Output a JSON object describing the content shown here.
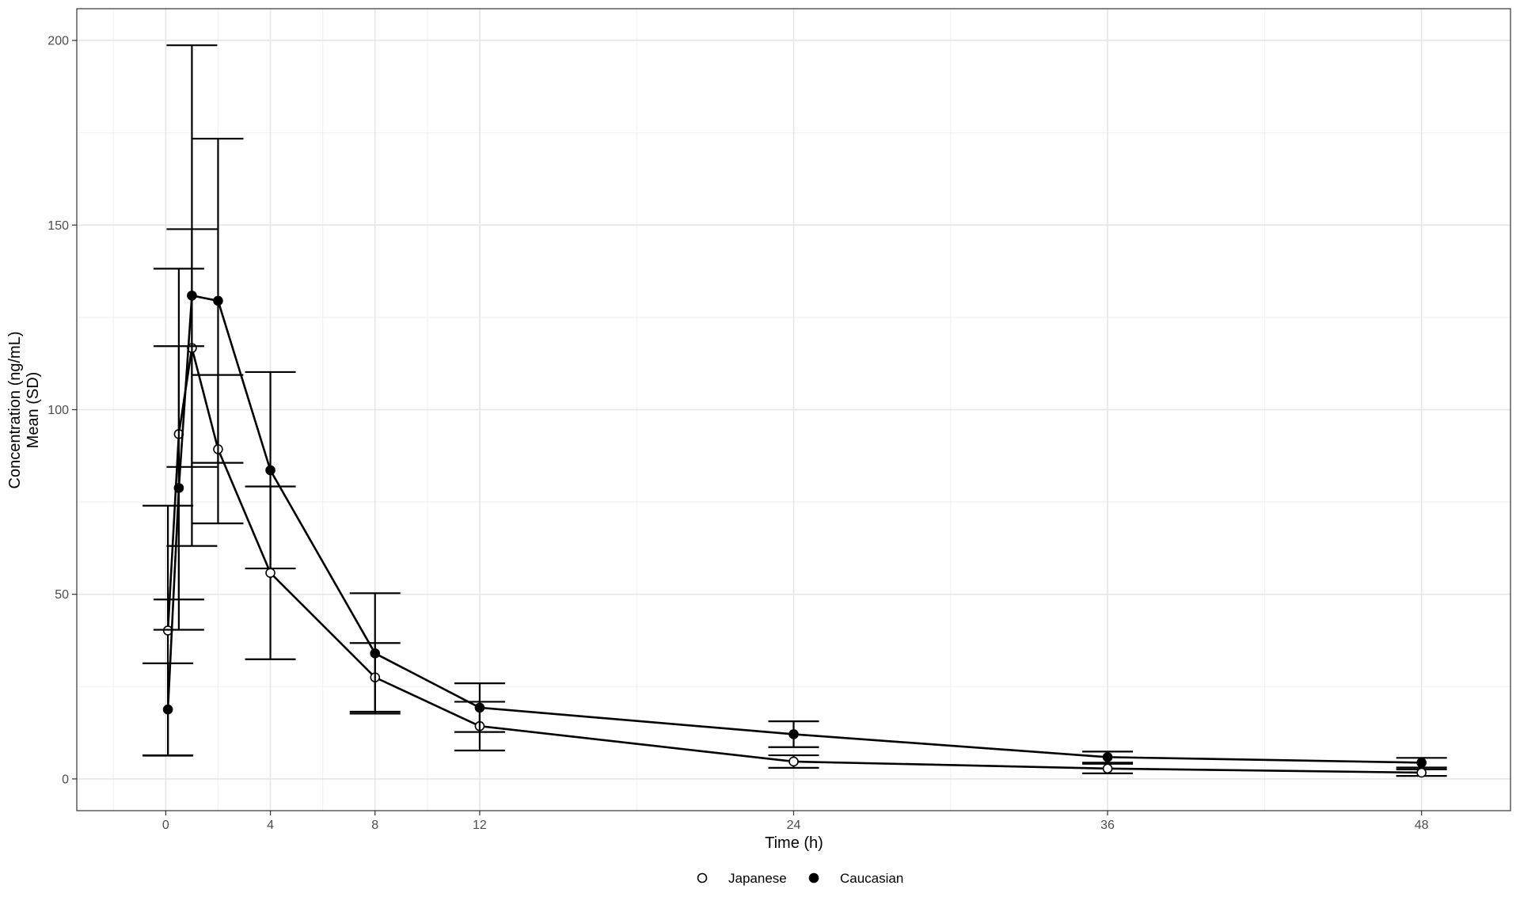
{
  "chart_data": {
    "type": "line",
    "xlabel": "Time (h)",
    "ylabel_line1": "Concentration (ng/mL)",
    "ylabel_line2": "Mean (SD)",
    "x_ticks": [
      0,
      4,
      8,
      12,
      24,
      36,
      48
    ],
    "y_ticks": [
      0,
      50,
      100,
      150,
      200
    ],
    "xlim": [
      -3.4,
      51.4
    ],
    "ylim": [
      -8.6,
      208.6
    ],
    "grid": true,
    "legend_position": "bottom",
    "series": [
      {
        "name": "Japanese",
        "marker": "open-circle",
        "x": [
          0.083,
          0.5,
          1,
          2,
          4,
          8,
          12,
          24,
          36,
          48
        ],
        "y": [
          40.2,
          93.4,
          116.7,
          89.3,
          55.8,
          27.5,
          14.3,
          4.7,
          2.8,
          1.7
        ],
        "sd": [
          33.8,
          44.8,
          32.2,
          20.1,
          23.4,
          9.3,
          6.6,
          1.7,
          1.3,
          0.9
        ]
      },
      {
        "name": "Caucasian",
        "marker": "filled-circle",
        "x": [
          0.083,
          0.5,
          1,
          2,
          4,
          8,
          12,
          24,
          36,
          48
        ],
        "y": [
          18.8,
          78.8,
          130.9,
          129.5,
          83.6,
          34.0,
          19.3,
          12.1,
          5.9,
          4.4
        ],
        "sd": [
          12.5,
          38.4,
          67.8,
          43.9,
          26.6,
          16.3,
          6.6,
          3.5,
          1.5,
          1.3
        ]
      }
    ],
    "colors": {
      "line": "#000000",
      "open_marker_fill": "#ffffff",
      "grid_major": "#e6e6e6",
      "grid_minor": "#f2f2f2",
      "panel_border": "#333333",
      "tick_text": "#4d4d4d"
    }
  }
}
